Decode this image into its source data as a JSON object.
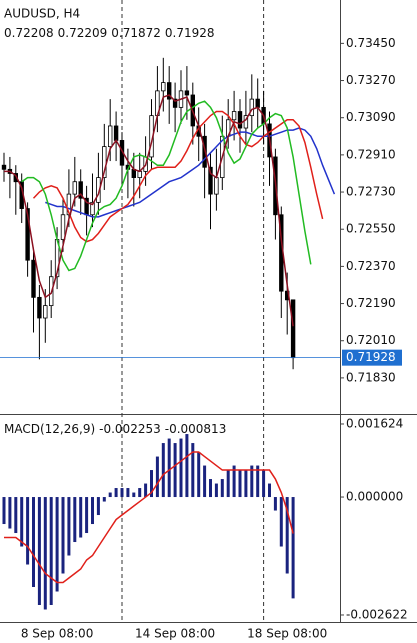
{
  "chart_data": [
    {
      "type": "candlestick",
      "title": "AUDUSD, H4",
      "categories": [
        null,
        null,
        null,
        null,
        null,
        null,
        null,
        null,
        null,
        "8 Sep 08:00",
        null,
        null,
        null,
        null,
        null,
        null,
        null,
        null,
        null,
        null,
        null,
        null,
        null,
        null,
        null,
        null,
        null,
        null,
        null,
        "14 Sep 08:00",
        null,
        null,
        null,
        null,
        null,
        null,
        null,
        null,
        null,
        null,
        null,
        null,
        null,
        null,
        null,
        null,
        null,
        null,
        "18 Sep 08:00",
        null
      ],
      "open": [
        0.7286,
        0.7284,
        0.7282,
        0.7278,
        0.7265,
        0.724,
        0.7222,
        0.7212,
        0.7218,
        0.7232,
        0.725,
        0.7262,
        0.7272,
        0.7278,
        0.727,
        0.7262,
        0.7268,
        0.728,
        0.7295,
        0.7305,
        0.7298,
        0.7286,
        0.7284,
        0.728,
        0.7283,
        0.729,
        0.731,
        0.7322,
        0.7326,
        0.7318,
        0.7314,
        0.7322,
        0.732,
        0.7305,
        0.73,
        0.7285,
        0.7272,
        0.728,
        0.73,
        0.7308,
        0.7312,
        0.7304,
        0.731,
        0.7318,
        0.7314,
        0.7306,
        0.729,
        0.7262,
        0.7225,
        0.72208
      ],
      "high": [
        0.7292,
        0.729,
        0.7286,
        0.7282,
        0.7268,
        0.7246,
        0.7228,
        0.7226,
        0.724,
        0.7256,
        0.727,
        0.7284,
        0.729,
        0.7284,
        0.7276,
        0.7282,
        0.7292,
        0.7306,
        0.7318,
        0.7312,
        0.7302,
        0.7294,
        0.7292,
        0.7292,
        0.73,
        0.7318,
        0.7334,
        0.7338,
        0.7334,
        0.7326,
        0.7332,
        0.7334,
        0.7326,
        0.7314,
        0.7306,
        0.7292,
        0.7294,
        0.731,
        0.7318,
        0.7322,
        0.7318,
        0.7322,
        0.733,
        0.7328,
        0.7322,
        0.7312,
        0.7294,
        0.7266,
        0.7234,
        0.72209
      ],
      "low": [
        0.7278,
        0.727,
        0.7262,
        0.7258,
        0.7232,
        0.7205,
        0.7192,
        0.72,
        0.7212,
        0.7226,
        0.7244,
        0.7256,
        0.7266,
        0.7262,
        0.7252,
        0.7256,
        0.7262,
        0.7274,
        0.7288,
        0.7288,
        0.7276,
        0.727,
        0.7266,
        0.727,
        0.7276,
        0.7284,
        0.7302,
        0.7312,
        0.7306,
        0.7302,
        0.7306,
        0.7308,
        0.7296,
        0.7288,
        0.727,
        0.7255,
        0.7264,
        0.7274,
        0.7294,
        0.7298,
        0.7292,
        0.7296,
        0.7302,
        0.7304,
        0.7296,
        0.7276,
        0.725,
        0.7212,
        0.7204,
        0.71872
      ],
      "close": [
        0.7284,
        0.7282,
        0.7278,
        0.7265,
        0.724,
        0.7222,
        0.7212,
        0.7218,
        0.7232,
        0.725,
        0.7262,
        0.7272,
        0.7278,
        0.727,
        0.7262,
        0.7268,
        0.728,
        0.7295,
        0.7305,
        0.7298,
        0.7286,
        0.7284,
        0.728,
        0.7283,
        0.729,
        0.731,
        0.7322,
        0.7326,
        0.7318,
        0.7314,
        0.7322,
        0.732,
        0.7305,
        0.73,
        0.7285,
        0.7272,
        0.728,
        0.73,
        0.7308,
        0.7312,
        0.7304,
        0.731,
        0.7318,
        0.7314,
        0.7306,
        0.729,
        0.7262,
        0.7225,
        0.72208,
        0.71928
      ],
      "moving_averages": [
        {
          "color": "#2233cc",
          "shift": 7,
          "values": [
            0.7268,
            0.7267,
            0.7266,
            0.7266,
            0.7265,
            0.7264,
            0.7263,
            0.7262,
            0.7261,
            0.7261,
            0.7262,
            0.7263,
            0.7264,
            0.7265,
            0.7266,
            0.7267,
            0.7268,
            0.727,
            0.7272,
            0.7274,
            0.7276,
            0.7278,
            0.7279,
            0.728,
            0.7282,
            0.7284,
            0.7286,
            0.7289,
            0.7292,
            0.7295,
            0.7298,
            0.73,
            0.7301,
            0.7302,
            0.7302,
            0.7301,
            0.73,
            0.73,
            0.73,
            0.7301,
            0.7302,
            0.7303,
            0.7303,
            0.7304,
            0.7303,
            0.73,
            0.7294,
            0.7286,
            0.7279,
            0.7272
          ]
        },
        {
          "color": "#e0201a",
          "shift": 5,
          "values": [
            0.727,
            0.7273,
            0.7275,
            0.7276,
            0.7275,
            0.727,
            0.7263,
            0.7256,
            0.7251,
            0.7249,
            0.725,
            0.7253,
            0.7257,
            0.7261,
            0.7263,
            0.7265,
            0.7267,
            0.7271,
            0.7276,
            0.7281,
            0.7284,
            0.7285,
            0.7285,
            0.7285,
            0.7285,
            0.7288,
            0.7293,
            0.7299,
            0.7304,
            0.7307,
            0.731,
            0.7312,
            0.7312,
            0.731,
            0.7306,
            0.73,
            0.7296,
            0.7295,
            0.7297,
            0.73,
            0.7302,
            0.7304,
            0.7306,
            0.7308,
            0.7308,
            0.7305,
            0.7297,
            0.7285,
            0.7272,
            0.726
          ]
        },
        {
          "color": "#22bb22",
          "shift": 3,
          "values": [
            0.7278,
            0.728,
            0.728,
            0.7278,
            0.7272,
            0.7262,
            0.725,
            0.724,
            0.7235,
            0.7236,
            0.7242,
            0.725,
            0.7258,
            0.7264,
            0.7266,
            0.7267,
            0.727,
            0.7276,
            0.7284,
            0.729,
            0.7291,
            0.729,
            0.7288,
            0.7286,
            0.7286,
            0.7291,
            0.7299,
            0.7307,
            0.7312,
            0.7314,
            0.7316,
            0.7317,
            0.7314,
            0.7309,
            0.7301,
            0.7292,
            0.7287,
            0.7289,
            0.7295,
            0.7301,
            0.7304,
            0.7306,
            0.7309,
            0.7311,
            0.731,
            0.7304,
            0.729,
            0.7272,
            0.7254,
            0.7238
          ]
        },
        {
          "color": "#8b1020",
          "shift": 0,
          "values": [
            0.7283,
            0.7283,
            0.7281,
            0.7275,
            0.7262,
            0.7245,
            0.723,
            0.7222,
            0.7224,
            0.7234,
            0.7247,
            0.726,
            0.727,
            0.7272,
            0.7268,
            0.7267,
            0.7272,
            0.7283,
            0.7294,
            0.7298,
            0.7293,
            0.7288,
            0.7284,
            0.7283,
            0.7286,
            0.7297,
            0.731,
            0.7319,
            0.732,
            0.7317,
            0.7318,
            0.7319,
            0.7312,
            0.7305,
            0.7294,
            0.7282,
            0.728,
            0.729,
            0.73,
            0.7307,
            0.7306,
            0.7308,
            0.7313,
            0.7314,
            0.731,
            0.7299,
            0.7278,
            0.725,
            0.7228,
            0.7208
          ]
        }
      ],
      "separators": [
        20,
        44
      ],
      "ylim": [
        0.7166,
        0.7366
      ],
      "yticks": [
        {
          "value": 0.7345,
          "label": "0.73450"
        },
        {
          "value": 0.7327,
          "label": "0.73270"
        },
        {
          "value": 0.7309,
          "label": "0.73090"
        },
        {
          "value": 0.7291,
          "label": "0.72910"
        },
        {
          "value": 0.7273,
          "label": "0.72730"
        },
        {
          "value": 0.7255,
          "label": "0.72550"
        },
        {
          "value": 0.7237,
          "label": "0.72370"
        },
        {
          "value": 0.7219,
          "label": "0.72190"
        },
        {
          "value": 0.7201,
          "label": "0.72010"
        },
        {
          "value": 0.7183,
          "label": "0.71830"
        }
      ],
      "price_color": "#1f6fd0"
    },
    {
      "type": "macd",
      "title": "MACD(12,26,9)",
      "histogram": [
        -0.0006,
        -0.0007,
        -0.0008,
        -0.0011,
        -0.0015,
        -0.002,
        -0.0024,
        -0.0025,
        -0.0024,
        -0.0021,
        -0.0017,
        -0.0013,
        -0.001,
        -0.0009,
        -0.0008,
        -0.0006,
        -0.0004,
        -0.0001,
        0.0001,
        0.0002,
        0.0002,
        0.0002,
        0.0001,
        0.0002,
        0.0003,
        0.0006,
        0.0009,
        0.0012,
        0.0013,
        0.0012,
        0.0013,
        0.0014,
        0.0012,
        0.001,
        0.0007,
        0.0004,
        0.0003,
        0.0004,
        0.0006,
        0.0007,
        0.0006,
        0.0006,
        0.0007,
        0.0007,
        0.0006,
        0.0003,
        -0.0003,
        -0.0011,
        -0.0017,
        -0.002253
      ],
      "signal": [
        -0.0009,
        -0.0009,
        -0.0009,
        -0.001,
        -0.0011,
        -0.0013,
        -0.0015,
        -0.0017,
        -0.0018,
        -0.0019,
        -0.0019,
        -0.0018,
        -0.0017,
        -0.0016,
        -0.0014,
        -0.0013,
        -0.0011,
        -0.0009,
        -0.0007,
        -0.0005,
        -0.0004,
        -0.0003,
        -0.0002,
        -0.0001,
        0,
        0.0001,
        0.0003,
        0.0005,
        0.0006,
        0.0007,
        0.0008,
        0.0009,
        0.001,
        0.001,
        0.0009,
        0.0008,
        0.0007,
        0.0006,
        0.0006,
        0.0006,
        0.0006,
        0.0006,
        0.0006,
        0.0006,
        0.0006,
        0.0006,
        0.0004,
        0.0001,
        -0.0003,
        -0.000813
      ],
      "histogram_color": "#1a237e",
      "signal_color": "#e0201a",
      "ylim": [
        -0.002778,
        0.001757
      ],
      "yticks": [
        0.001624,
        {
          "value": 0,
          "label": "0.000000"
        },
        -0.002622
      ]
    }
  ]
}
